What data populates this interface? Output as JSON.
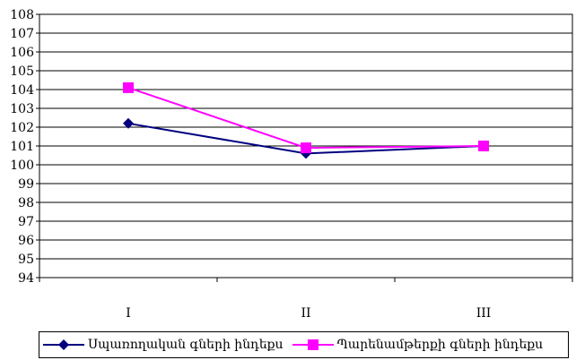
{
  "chart_data": {
    "type": "line",
    "categories": [
      "I",
      "II",
      "III"
    ],
    "ylim": [
      94,
      108
    ],
    "ytick_step": 1,
    "grid": true,
    "legend_position": "bottom",
    "series": [
      {
        "name": "Սպառողական գների ինդեքս",
        "values": [
          102.2,
          100.6,
          101.0
        ],
        "color": "#000080",
        "marker": "diamond"
      },
      {
        "name": "Պարենամթերքի գների ինդեքս",
        "values": [
          104.1,
          100.9,
          101.0
        ],
        "color": "#ff00ff",
        "marker": "square"
      }
    ]
  }
}
